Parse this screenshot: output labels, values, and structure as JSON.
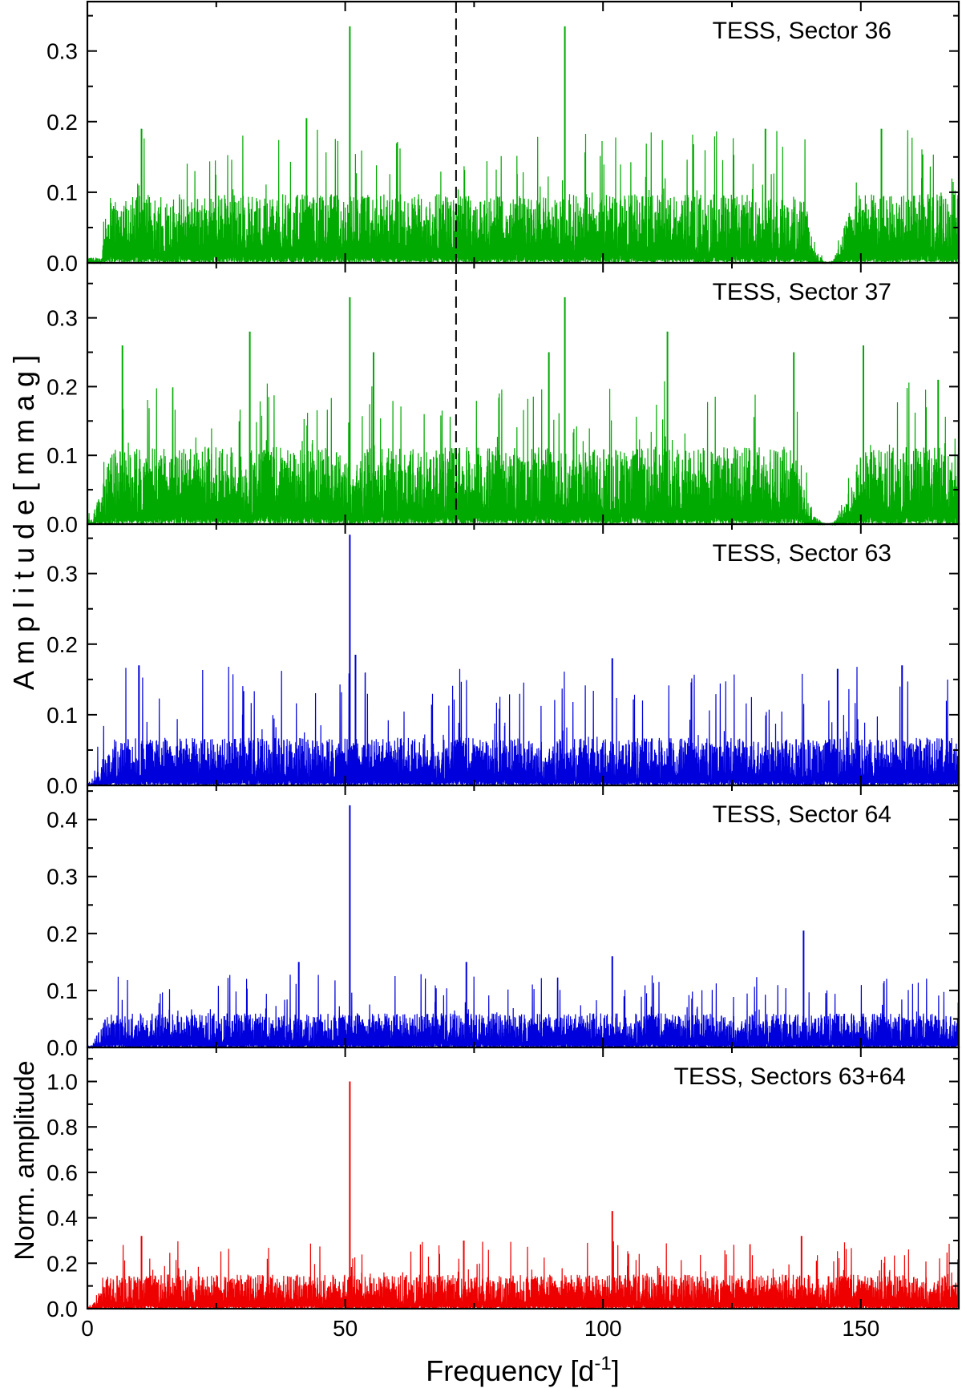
{
  "figure": {
    "xlabel_main": "Frequency [d",
    "xlabel_sup": "-1",
    "xlabel_end": "]",
    "ylabel_amp": "A m p l i t u d e   [ m m a g ]",
    "ylabel_norm": "Norm. amplitude"
  },
  "chart_data": [
    {
      "type": "line",
      "panel": "sector36",
      "annotation": "TESS, Sector 36",
      "color": "#00aa00",
      "xlim": [
        0,
        169
      ],
      "ylim": [
        0,
        0.37
      ],
      "yticks": [
        0.0,
        0.1,
        0.2,
        0.3
      ],
      "ytick_labels": [
        "0.0",
        "0.1",
        "0.2",
        "0.3"
      ],
      "xticks": [
        0,
        50,
        100,
        150
      ],
      "dashed_line_x": 71.5,
      "noise": {
        "start": 2.5,
        "rise_end": 4.0,
        "level": 0.065,
        "max": 0.19,
        "dip_center": 143.5,
        "dip_halfwidth": 4.5
      },
      "peaks": [
        {
          "x": 50.9,
          "y": 0.335
        },
        {
          "x": 92.6,
          "y": 0.335
        },
        {
          "x": 42.5,
          "y": 0.205
        },
        {
          "x": 10.5,
          "y": 0.19
        },
        {
          "x": 131.5,
          "y": 0.19
        },
        {
          "x": 154.0,
          "y": 0.19
        }
      ]
    },
    {
      "type": "line",
      "panel": "sector37",
      "annotation": "TESS, Sector 37",
      "color": "#00aa00",
      "xlim": [
        0,
        169
      ],
      "ylim": [
        0,
        0.38
      ],
      "yticks": [
        0.0,
        0.1,
        0.2,
        0.3
      ],
      "ytick_labels": [
        "0.0",
        "0.1",
        "0.2",
        "0.3"
      ],
      "xticks": [
        0,
        50,
        100,
        150
      ],
      "dashed_line_x": 71.5,
      "noise": {
        "start": 0.5,
        "rise_end": 5.0,
        "level": 0.075,
        "max": 0.21,
        "dip_center": 143.5,
        "dip_halfwidth": 6.5
      },
      "peaks": [
        {
          "x": 50.9,
          "y": 0.33
        },
        {
          "x": 92.6,
          "y": 0.33
        },
        {
          "x": 31.5,
          "y": 0.28
        },
        {
          "x": 112.5,
          "y": 0.28
        },
        {
          "x": 6.8,
          "y": 0.26
        },
        {
          "x": 150.5,
          "y": 0.26
        },
        {
          "x": 55.5,
          "y": 0.25
        },
        {
          "x": 89.5,
          "y": 0.25
        },
        {
          "x": 137.0,
          "y": 0.25
        },
        {
          "x": 165.0,
          "y": 0.21
        }
      ]
    },
    {
      "type": "line",
      "panel": "sector63",
      "annotation": "TESS, Sector 63",
      "color": "#0000dd",
      "xlim": [
        0,
        169
      ],
      "ylim": [
        0,
        0.37
      ],
      "yticks": [
        0.0,
        0.1,
        0.2,
        0.3
      ],
      "ytick_labels": [
        "0.0",
        "0.1",
        "0.2",
        "0.3"
      ],
      "xticks": [
        0,
        50,
        100,
        150
      ],
      "noise": {
        "start": 0.5,
        "rise_end": 5.0,
        "level": 0.045,
        "max": 0.17
      },
      "peaks": [
        {
          "x": 50.9,
          "y": 0.355
        },
        {
          "x": 52.0,
          "y": 0.185
        },
        {
          "x": 101.8,
          "y": 0.18
        },
        {
          "x": 10.0,
          "y": 0.17
        },
        {
          "x": 158.0,
          "y": 0.17
        },
        {
          "x": 145.5,
          "y": 0.165
        }
      ]
    },
    {
      "type": "line",
      "panel": "sector64",
      "annotation": "TESS, Sector 64",
      "color": "#0000dd",
      "xlim": [
        0,
        169
      ],
      "ylim": [
        0,
        0.46
      ],
      "yticks": [
        0.0,
        0.1,
        0.2,
        0.3,
        0.4
      ],
      "ytick_labels": [
        "0.0",
        "0.1",
        "0.2",
        "0.3",
        "0.4"
      ],
      "xticks": [
        0,
        50,
        100,
        150
      ],
      "noise": {
        "start": 0.5,
        "rise_end": 4.0,
        "level": 0.04,
        "max": 0.13
      },
      "peaks": [
        {
          "x": 50.9,
          "y": 0.425
        },
        {
          "x": 138.9,
          "y": 0.205
        },
        {
          "x": 101.8,
          "y": 0.16
        },
        {
          "x": 41.0,
          "y": 0.15
        },
        {
          "x": 73.5,
          "y": 0.15
        }
      ]
    },
    {
      "type": "line",
      "panel": "sectors63_64",
      "annotation": "TESS, Sectors 63+64",
      "color": "#ee0000",
      "xlim": [
        0,
        169
      ],
      "ylim": [
        0,
        1.15
      ],
      "yticks": [
        0.0,
        0.2,
        0.4,
        0.6,
        0.8,
        1.0
      ],
      "ytick_labels": [
        "0.0",
        "0.2",
        "0.4",
        "0.6",
        "0.8",
        "1.0"
      ],
      "xticks": [
        0,
        50,
        100,
        150
      ],
      "xtick_labels": [
        "0",
        "50",
        "100",
        "150"
      ],
      "noise": {
        "start": 0.5,
        "rise_end": 4.0,
        "level": 0.1,
        "max": 0.3
      },
      "peaks": [
        {
          "x": 50.9,
          "y": 1.0
        },
        {
          "x": 101.8,
          "y": 0.43
        },
        {
          "x": 10.5,
          "y": 0.32
        },
        {
          "x": 138.5,
          "y": 0.32
        },
        {
          "x": 73.0,
          "y": 0.3
        }
      ]
    }
  ]
}
